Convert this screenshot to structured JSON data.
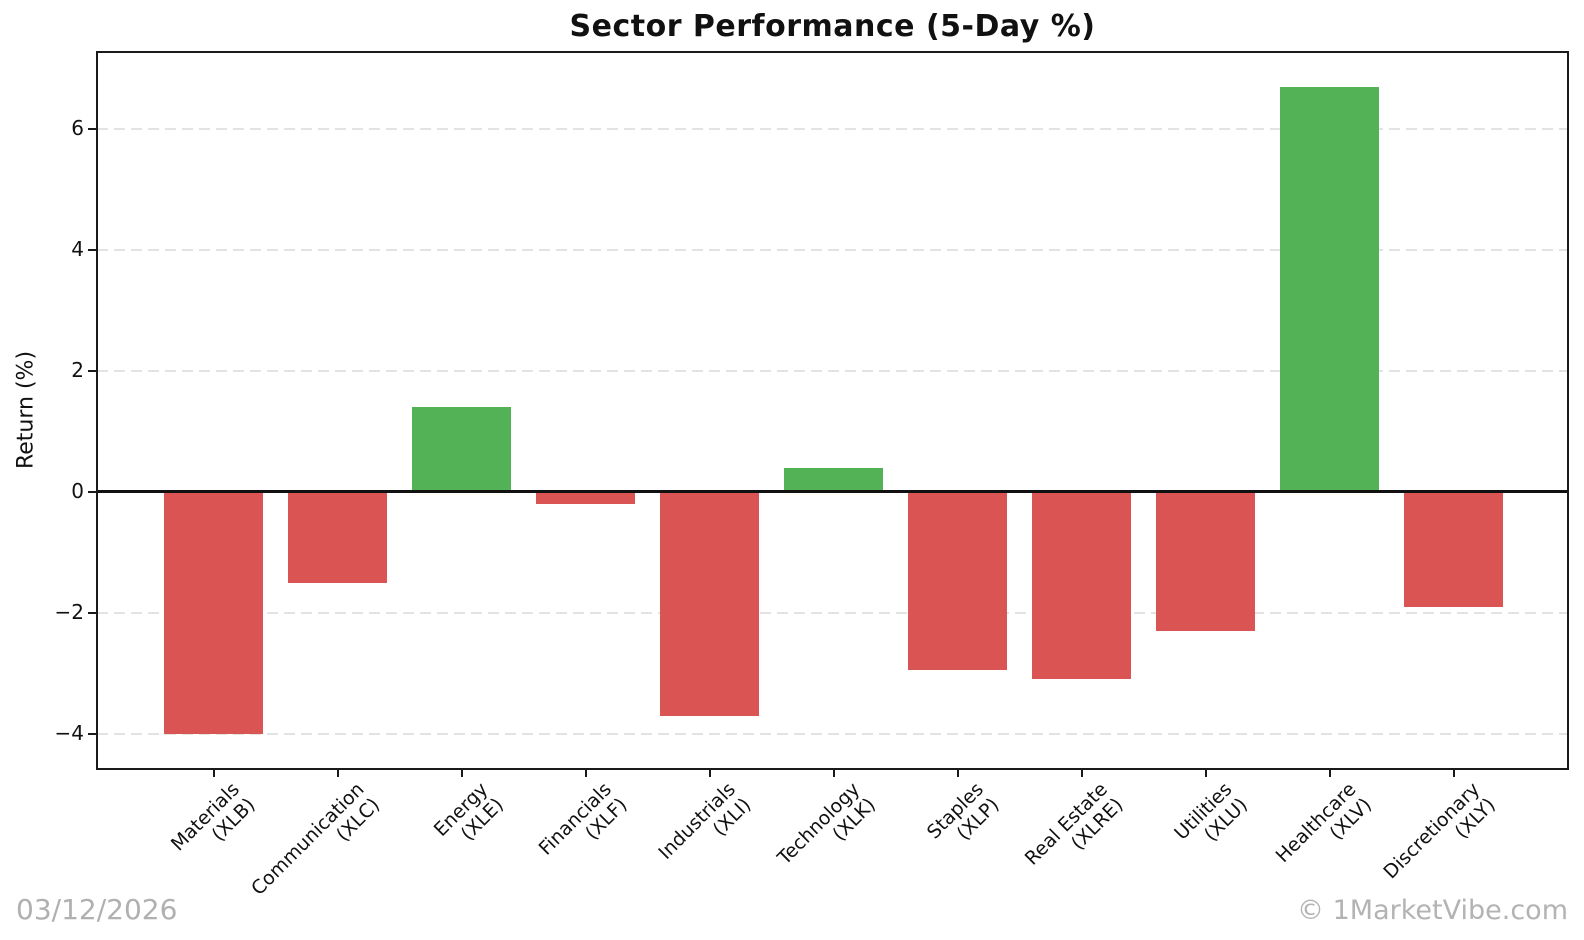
{
  "chart_data": {
    "type": "bar",
    "title": "Sector Performance (5-Day %)",
    "ylabel": "Return (%)",
    "xlabel": "",
    "categories": [
      "Materials\n(XLB)",
      "Communication\n(XLC)",
      "Energy\n(XLE)",
      "Financials\n(XLF)",
      "Industrials\n(XLI)",
      "Technology\n(XLK)",
      "Staples\n(XLP)",
      "Real Estate\n(XLRE)",
      "Utilities\n(XLU)",
      "Healthcare\n(XLV)",
      "Discretionary\n(XLY)"
    ],
    "tickers": [
      "XLB",
      "XLC",
      "XLE",
      "XLF",
      "XLI",
      "XLK",
      "XLP",
      "XLRE",
      "XLU",
      "XLV",
      "XLY"
    ],
    "values": [
      -4.0,
      -1.5,
      1.4,
      -0.2,
      -3.7,
      0.4,
      -2.95,
      -3.1,
      -2.3,
      6.7,
      -1.9
    ],
    "yticks": [
      -4,
      -2,
      0,
      2,
      4,
      6
    ],
    "ylim": [
      -4.58,
      7.27
    ],
    "grid": "horizontal-dashed",
    "legend": "none",
    "positive_color": "#53b156",
    "negative_color": "#d95452",
    "zero_line_color": "#111111",
    "grid_color": "#e3e3e3",
    "axis_color": "#1a1a1a"
  },
  "footer": {
    "date": "03/12/2026",
    "watermark": "© 1MarketVibe.com"
  }
}
